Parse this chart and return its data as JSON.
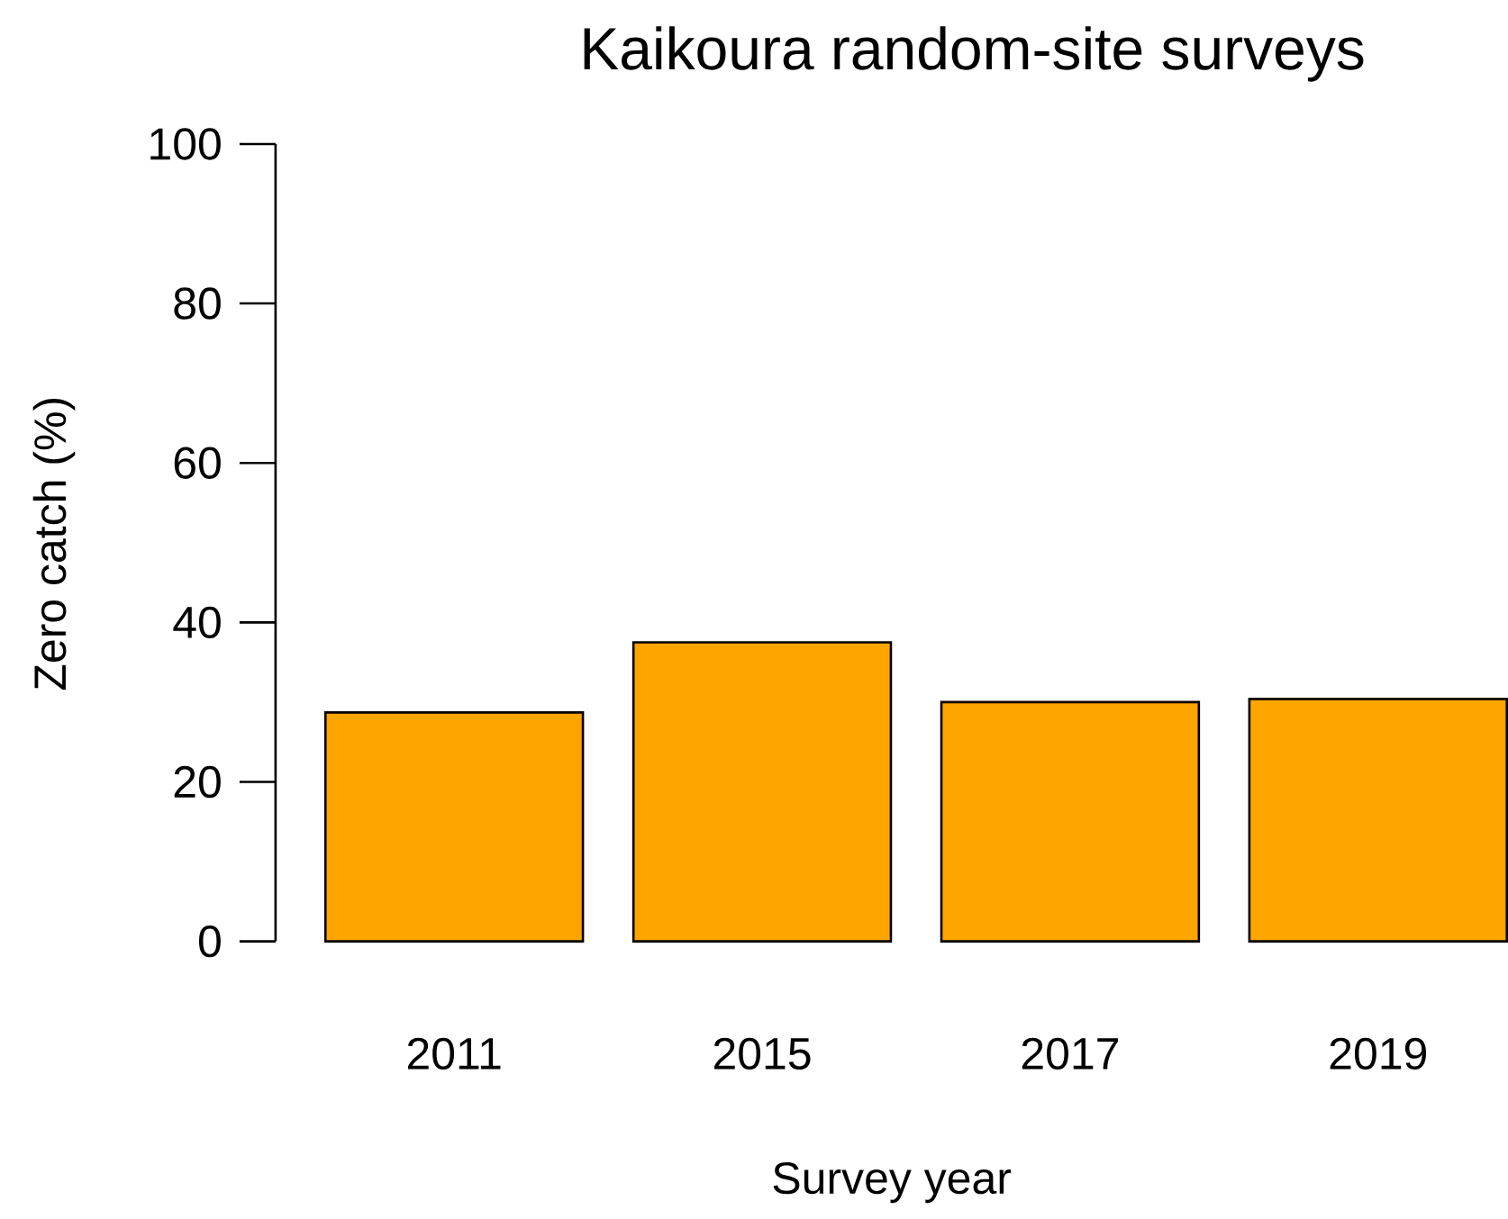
{
  "chart_data": {
    "type": "bar",
    "title": "Kaikoura random-site surveys",
    "xlabel": "Survey year",
    "ylabel": "Zero catch (%)",
    "categories": [
      "2011",
      "2015",
      "2017",
      "2019"
    ],
    "values": [
      28.7,
      37.5,
      30.0,
      30.4
    ],
    "color": "#ffa500",
    "ylim": [
      0,
      100
    ],
    "yticks": [
      0,
      20,
      40,
      60,
      80,
      100
    ]
  }
}
